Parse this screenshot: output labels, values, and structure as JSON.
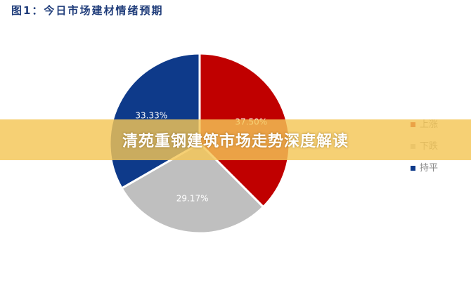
{
  "title": "图1：今日市场建材情绪预期",
  "banner": "清苑重钢建筑市场走势深度解读",
  "chart_data": {
    "type": "pie",
    "title": "图1：今日市场建材情绪预期",
    "legend_position": "right",
    "slices": [
      {
        "name": "上涨",
        "value": 37.5,
        "label": "37.50%",
        "color": "#c00000"
      },
      {
        "name": "下跌",
        "value": 29.17,
        "label": "29.17%",
        "color": "#bfbfbf"
      },
      {
        "name": "持平",
        "value": 33.33,
        "label": "33.33%",
        "color": "#0e3a8a"
      }
    ]
  }
}
